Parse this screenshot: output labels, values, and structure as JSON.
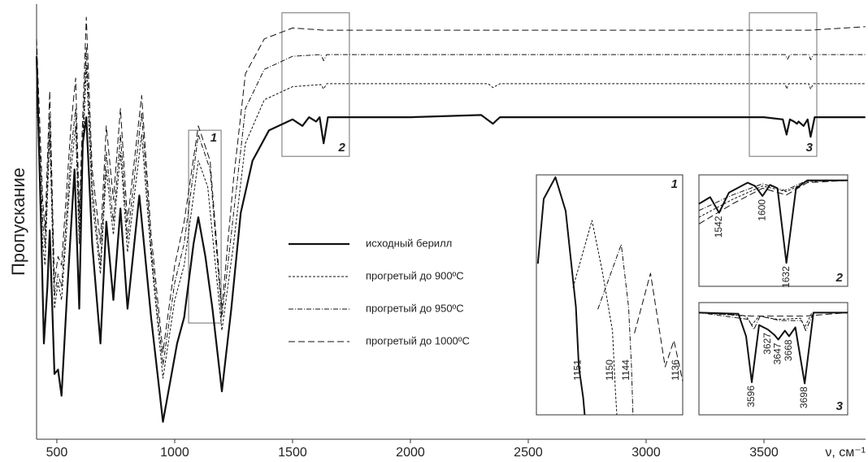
{
  "chart_data": [
    {
      "type": "line",
      "y_label": "Пропускание",
      "x_label": "ν, см⁻¹",
      "xlim": [
        414,
        3931
      ],
      "ylim": [
        0,
        100
      ],
      "xticks": [
        500,
        1000,
        1500,
        2000,
        2500,
        3000,
        3500
      ],
      "regions": [
        {
          "label": "1",
          "xlim": [
            1059,
            1197
          ],
          "ylim": [
            26.7,
            71
          ]
        },
        {
          "label": "2",
          "xlim": [
            1455,
            1741
          ],
          "ylim": [
            65,
            98
          ]
        },
        {
          "label": "3",
          "xlim": [
            3438,
            3724
          ],
          "ylim": [
            65,
            98
          ]
        }
      ],
      "series": [
        {
          "name": "исходный берилл",
          "color": "#111",
          "dash": "none",
          "width": 2.2,
          "x": [
            414,
            435,
            445,
            460,
            470,
            490,
            505,
            520,
            545,
            575,
            595,
            610,
            625,
            650,
            685,
            710,
            740,
            770,
            800,
            850,
            900,
            950,
            990,
            1010,
            1040,
            1080,
            1100,
            1130,
            1160,
            1200,
            1240,
            1280,
            1330,
            1400,
            1500,
            1542,
            1570,
            1600,
            1615,
            1632,
            1650,
            2000,
            2300,
            2350,
            2380,
            3500,
            3580,
            3596,
            3610,
            3627,
            3640,
            3647,
            3668,
            3685,
            3698,
            3715,
            3930
          ],
          "values": [
            88,
            45,
            22,
            35,
            48,
            15,
            16,
            10,
            35,
            62,
            30,
            68,
            74,
            45,
            22,
            50,
            32,
            53,
            30,
            56,
            28,
            4,
            16,
            22,
            28,
            45,
            51,
            42,
            30,
            11,
            30,
            52,
            64,
            71,
            73.5,
            72,
            74,
            73,
            74,
            68,
            74,
            74,
            74.5,
            72.5,
            74,
            74,
            73.5,
            70,
            73.5,
            73,
            72.5,
            73,
            72,
            73.5,
            69.5,
            74,
            74
          ]
        },
        {
          "name": "прогретый до 900ºC",
          "color": "#111",
          "dash": "3 2",
          "width": 1,
          "x": [
            414,
            440,
            450,
            470,
            490,
            505,
            520,
            560,
            580,
            595,
            625,
            650,
            685,
            710,
            740,
            770,
            800,
            860,
            900,
            950,
            1000,
            1040,
            1100,
            1140,
            1200,
            1250,
            1300,
            1380,
            1500,
            1620,
            1632,
            1645,
            2330,
            2350,
            2380,
            3590,
            3596,
            3605,
            3690,
            3698,
            3710,
            3930
          ],
          "values": [
            80,
            45,
            40,
            70,
            30,
            36,
            32,
            62,
            72,
            45,
            86,
            55,
            38,
            62,
            47,
            66,
            43,
            70,
            42,
            14,
            32,
            40,
            64,
            58,
            25,
            45,
            68,
            78,
            81,
            81.5,
            80.5,
            81.7,
            81.7,
            80.8,
            81.7,
            81.7,
            80.5,
            81.7,
            81.7,
            80.5,
            81.7,
            81.7
          ]
        },
        {
          "name": "прогретый до 950ºC",
          "color": "#111",
          "dash": "6 2 1 2",
          "width": 1,
          "x": [
            414,
            440,
            450,
            470,
            490,
            505,
            520,
            560,
            580,
            595,
            625,
            650,
            685,
            710,
            740,
            770,
            800,
            860,
            900,
            950,
            1000,
            1040,
            1100,
            1150,
            1200,
            1250,
            1300,
            1380,
            1500,
            1620,
            1632,
            1645,
            3590,
            3600,
            3610,
            3690,
            3698,
            3710,
            3930
          ],
          "values": [
            86,
            50,
            44,
            74,
            33,
            38,
            35,
            66,
            76,
            48,
            90,
            58,
            40,
            66,
            50,
            70,
            46,
            75,
            44,
            17,
            36,
            45,
            70,
            62,
            28,
            52,
            76,
            85,
            88,
            88.4,
            87,
            88.4,
            88.4,
            87.3,
            88.4,
            88.4,
            87.2,
            88.4,
            88.4
          ]
        },
        {
          "name": "прогретый до 1000ºC",
          "color": "#111",
          "dash": "8 4",
          "width": 1,
          "x": [
            414,
            440,
            450,
            470,
            490,
            505,
            520,
            560,
            580,
            595,
            625,
            650,
            685,
            710,
            740,
            770,
            800,
            860,
            900,
            950,
            1000,
            1040,
            1100,
            1150,
            1200,
            1250,
            1300,
            1380,
            1500,
            1632,
            3600,
            3698,
            3930
          ],
          "values": [
            92,
            55,
            48,
            80,
            36,
            42,
            40,
            72,
            83,
            52,
            97,
            62,
            45,
            72,
            55,
            76,
            50,
            79,
            47,
            20,
            40,
            50,
            72,
            64,
            30,
            60,
            84,
            92,
            94.5,
            94,
            94,
            94,
            94.8
          ]
        }
      ]
    },
    {
      "type": "line",
      "title": "1",
      "xlim": [
        0,
        100
      ],
      "ylim": [
        0,
        100
      ],
      "peaks": [
        1151,
        1150,
        1144,
        1136
      ],
      "series": [
        {
          "color": "#111",
          "dash": "none",
          "width": 2,
          "x": [
            1,
            5,
            13,
            20,
            27,
            29,
            32,
            33
          ],
          "values": [
            63,
            90,
            99,
            85,
            45,
            20,
            7,
            0
          ]
        },
        {
          "color": "#111",
          "dash": "3 2",
          "width": 1,
          "x": [
            25,
            38,
            45,
            52,
            54,
            55
          ],
          "values": [
            53,
            81,
            60,
            35,
            10,
            0
          ]
        },
        {
          "color": "#111",
          "dash": "6 2 1 2",
          "width": 1,
          "x": [
            42,
            58,
            63,
            65,
            66
          ],
          "values": [
            44,
            71,
            45,
            20,
            0
          ]
        },
        {
          "color": "#111",
          "dash": "8 4",
          "width": 1,
          "x": [
            67,
            78,
            88,
            94,
            100
          ],
          "values": [
            34,
            59,
            20,
            31,
            14
          ]
        }
      ]
    },
    {
      "type": "line",
      "title": "2",
      "xlim": [
        1515,
        1714
      ],
      "ylim": [
        0,
        100
      ],
      "peaks": [
        1542,
        1600,
        1632
      ],
      "series": [
        {
          "color": "#111",
          "dash": "none",
          "width": 2,
          "x": [
            1515,
            1530,
            1542,
            1555,
            1580,
            1590,
            1600,
            1610,
            1620,
            1632,
            1645,
            1660,
            1714
          ],
          "values": [
            74,
            80,
            66,
            84,
            93,
            90,
            81,
            91,
            88,
            21,
            88,
            95,
            95
          ]
        },
        {
          "color": "#111",
          "dash": "3 2",
          "width": 1,
          "x": [
            1515,
            1560,
            1600,
            1632,
            1660,
            1714
          ],
          "values": [
            62,
            78,
            90,
            85,
            94,
            95
          ]
        },
        {
          "color": "#111",
          "dash": "6 2 1 2",
          "width": 1,
          "x": [
            1515,
            1560,
            1600,
            1630,
            1660,
            1714
          ],
          "values": [
            68,
            82,
            92,
            86,
            95,
            95
          ]
        },
        {
          "color": "#111",
          "dash": "8 4",
          "width": 1,
          "x": [
            1515,
            1560,
            1600,
            1632,
            1660,
            1714
          ],
          "values": [
            56,
            74,
            88,
            82,
            93,
            95
          ]
        }
      ]
    },
    {
      "type": "line",
      "title": "3",
      "xlim": [
        3494,
        3781
      ],
      "ylim": [
        0,
        100
      ],
      "peaks": [
        3596,
        3627,
        3647,
        3668,
        3698
      ],
      "series": [
        {
          "color": "#111",
          "dash": "none",
          "width": 2,
          "x": [
            3494,
            3570,
            3585,
            3596,
            3610,
            3627,
            3640,
            3647,
            3660,
            3668,
            3680,
            3698,
            3715,
            3781
          ],
          "values": [
            91,
            90,
            70,
            29,
            80,
            76,
            71,
            67,
            75,
            70,
            78,
            28,
            91,
            91
          ]
        },
        {
          "color": "#111",
          "dash": "3 2",
          "width": 1,
          "x": [
            3494,
            3585,
            3596,
            3610,
            3647,
            3690,
            3698,
            3712,
            3781
          ],
          "values": [
            91,
            88,
            80,
            88,
            85,
            86,
            78,
            91,
            91
          ]
        },
        {
          "color": "#111",
          "dash": "6 2 1 2",
          "width": 1,
          "x": [
            3494,
            3590,
            3600,
            3612,
            3650,
            3692,
            3700,
            3715,
            3781
          ],
          "values": [
            91,
            85,
            76,
            88,
            84,
            84,
            75,
            91,
            91
          ]
        },
        {
          "color": "#111",
          "dash": "8 4",
          "width": 1,
          "x": [
            3494,
            3596,
            3698,
            3781
          ],
          "values": [
            91,
            88,
            88,
            91
          ]
        }
      ]
    }
  ]
}
